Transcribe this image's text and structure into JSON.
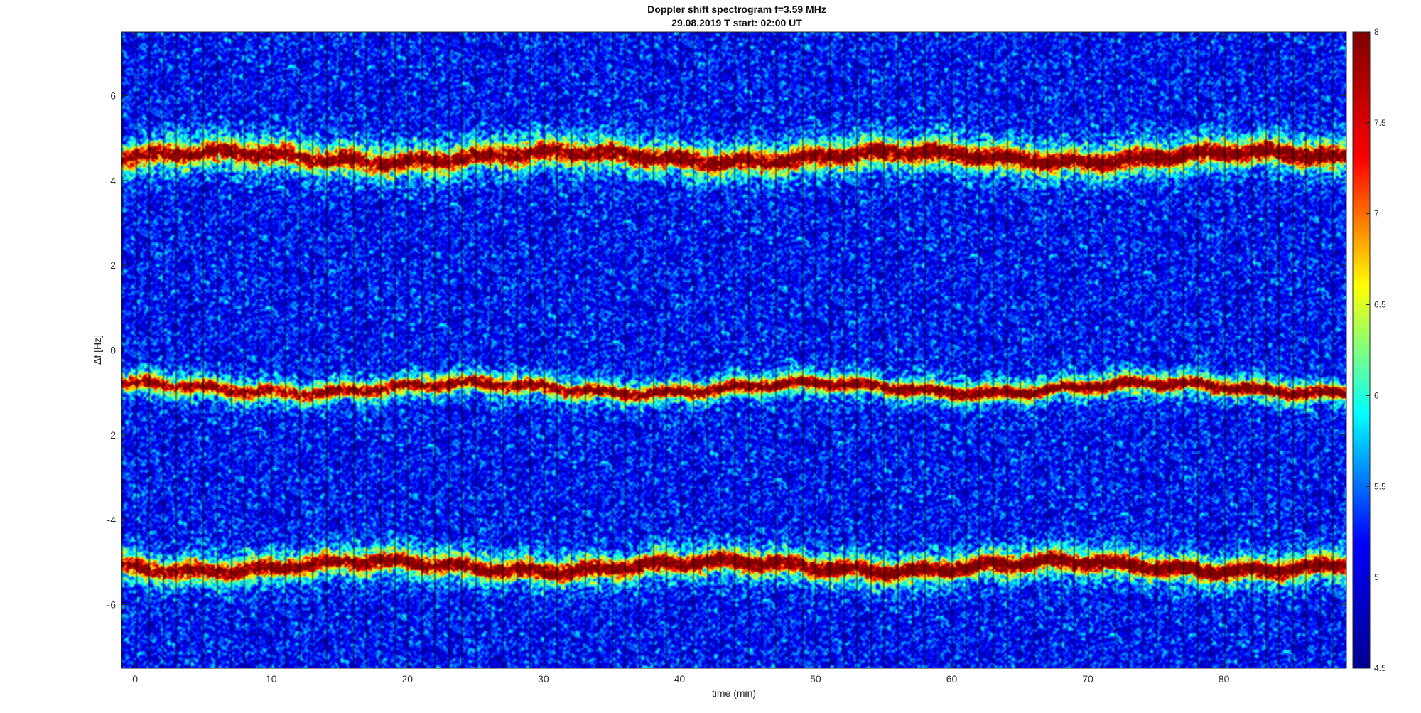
{
  "chart_data": {
    "type": "heatmap",
    "title": "Doppler shift spectrogram f=3.59 MHz",
    "subtitle": "29.08.2019   T start: 02:00 UT",
    "xlabel": "time (min)",
    "ylabel": "Δf [Hz]",
    "xlim": [
      -1,
      89
    ],
    "ylim": [
      -7.5,
      7.5
    ],
    "x_ticks": [
      0,
      10,
      20,
      30,
      40,
      50,
      60,
      70,
      80
    ],
    "y_ticks": [
      6,
      4,
      2,
      0,
      -2,
      -4,
      -6
    ],
    "colorbar": {
      "colormap": "jet",
      "clim": [
        4.5,
        8
      ],
      "ticks": [
        8,
        7.5,
        7,
        6.5,
        6,
        5.5,
        5,
        4.5
      ],
      "colors": [
        "#00008f",
        "#0000ff",
        "#00ffff",
        "#ffff00",
        "#ff0000",
        "#800000"
      ]
    },
    "background_level": 5.2,
    "traces": [
      {
        "name": "upper",
        "delta_f_hz": 4.55,
        "intensity": 7.6,
        "band_width_hz": 0.45
      },
      {
        "name": "middle",
        "delta_f_hz": -0.9,
        "intensity": 7.6,
        "band_width_hz": 0.3
      },
      {
        "name": "lower",
        "delta_f_hz": -5.1,
        "intensity": 7.8,
        "band_width_hz": 0.4
      }
    ],
    "segment_interval_min": 1,
    "grid": false
  }
}
